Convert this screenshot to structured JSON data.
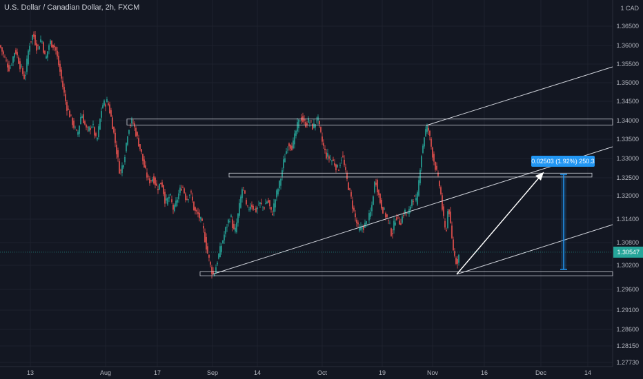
{
  "chart_data": {
    "type": "candlestick",
    "title": "U.S. Dollar / Canadian Dollar, 2h, FXCM",
    "currency_label": "1 CAD",
    "y_ticks": [
      "1.36500",
      "1.36000",
      "1.35500",
      "1.35000",
      "1.34500",
      "1.34000",
      "1.33500",
      "1.33000",
      "1.32500",
      "1.32000",
      "1.31400",
      "1.30800",
      "1.30200",
      "1.29600",
      "1.29100",
      "1.28600",
      "1.28150",
      "1.27730"
    ],
    "x_ticks": [
      "13",
      "Aug",
      "17",
      "Sep",
      "14",
      "Oct",
      "19",
      "Nov",
      "16",
      "Dec",
      "14"
    ],
    "last_price": "1.30547",
    "price_path": [
      [
        0,
        1.36
      ],
      [
        6,
        1.357
      ],
      [
        14,
        1.3535
      ],
      [
        22,
        1.359
      ],
      [
        30,
        1.354
      ],
      [
        36,
        1.351
      ],
      [
        42,
        1.36
      ],
      [
        48,
        1.363
      ],
      [
        54,
        1.359
      ],
      [
        60,
        1.362
      ],
      [
        66,
        1.356
      ],
      [
        72,
        1.361
      ],
      [
        80,
        1.3595
      ],
      [
        88,
        1.352
      ],
      [
        96,
        1.344
      ],
      [
        104,
        1.34
      ],
      [
        112,
        1.336
      ],
      [
        118,
        1.342
      ],
      [
        126,
        1.337
      ],
      [
        134,
        1.339
      ],
      [
        140,
        1.334
      ],
      [
        148,
        1.344
      ],
      [
        156,
        1.345
      ],
      [
        162,
        1.34
      ],
      [
        168,
        1.333
      ],
      [
        174,
        1.326
      ],
      [
        180,
        1.33
      ],
      [
        186,
        1.338
      ],
      [
        192,
        1.34
      ],
      [
        198,
        1.336
      ],
      [
        204,
        1.332
      ],
      [
        210,
        1.327
      ],
      [
        216,
        1.324
      ],
      [
        222,
        1.325
      ],
      [
        228,
        1.322
      ],
      [
        234,
        1.324
      ],
      [
        240,
        1.318
      ],
      [
        246,
        1.32
      ],
      [
        252,
        1.316
      ],
      [
        258,
        1.32
      ],
      [
        264,
        1.323
      ],
      [
        270,
        1.319
      ],
      [
        276,
        1.321
      ],
      [
        282,
        1.316
      ],
      [
        288,
        1.315
      ],
      [
        294,
        1.312
      ],
      [
        300,
        1.306
      ],
      [
        306,
        1.301
      ],
      [
        310,
        1.2995
      ],
      [
        316,
        1.304
      ],
      [
        322,
        1.308
      ],
      [
        328,
        1.312
      ],
      [
        334,
        1.315
      ],
      [
        340,
        1.31
      ],
      [
        346,
        1.316
      ],
      [
        352,
        1.323
      ],
      [
        358,
        1.316
      ],
      [
        364,
        1.318
      ],
      [
        370,
        1.316
      ],
      [
        376,
        1.318
      ],
      [
        382,
        1.317
      ],
      [
        388,
        1.319
      ],
      [
        394,
        1.315
      ],
      [
        400,
        1.32
      ],
      [
        406,
        1.324
      ],
      [
        412,
        1.33
      ],
      [
        418,
        1.334
      ],
      [
        424,
        1.333
      ],
      [
        430,
        1.338
      ],
      [
        436,
        1.341
      ],
      [
        442,
        1.339
      ],
      [
        448,
        1.34
      ],
      [
        454,
        1.338
      ],
      [
        460,
        1.341
      ],
      [
        466,
        1.335
      ],
      [
        472,
        1.331
      ],
      [
        478,
        1.33
      ],
      [
        484,
        1.329
      ],
      [
        490,
        1.327
      ],
      [
        496,
        1.331
      ],
      [
        502,
        1.325
      ],
      [
        508,
        1.32
      ],
      [
        514,
        1.315
      ],
      [
        520,
        1.311
      ],
      [
        526,
        1.312
      ],
      [
        532,
        1.313
      ],
      [
        538,
        1.316
      ],
      [
        544,
        1.325
      ],
      [
        550,
        1.319
      ],
      [
        556,
        1.316
      ],
      [
        562,
        1.314
      ],
      [
        568,
        1.31
      ],
      [
        574,
        1.315
      ],
      [
        580,
        1.313
      ],
      [
        586,
        1.316
      ],
      [
        592,
        1.315
      ],
      [
        598,
        1.32
      ],
      [
        604,
        1.318
      ],
      [
        610,
        1.33
      ],
      [
        616,
        1.337
      ],
      [
        620,
        1.3385
      ],
      [
        626,
        1.332
      ],
      [
        632,
        1.327
      ],
      [
        638,
        1.322
      ],
      [
        642,
        1.315
      ],
      [
        646,
        1.31
      ],
      [
        650,
        1.318
      ],
      [
        654,
        1.31
      ],
      [
        658,
        1.305
      ],
      [
        662,
        1.3025
      ],
      [
        666,
        1.3054
      ]
    ],
    "last_color": "#26a69a",
    "up_color": "#26a69a",
    "down_color": "#ef5350",
    "measure": {
      "label": "0.02503 (1.92%) 250.3",
      "color": "#2196f3"
    },
    "annotations": {
      "rect_top": {
        "y1": 1.3404,
        "y2": 1.3388
      },
      "rect_mid": {
        "y1": 1.3262,
        "y2": 1.3252
      },
      "rect_bottom": {
        "y1": 1.3004,
        "y2": 1.2994
      }
    }
  }
}
